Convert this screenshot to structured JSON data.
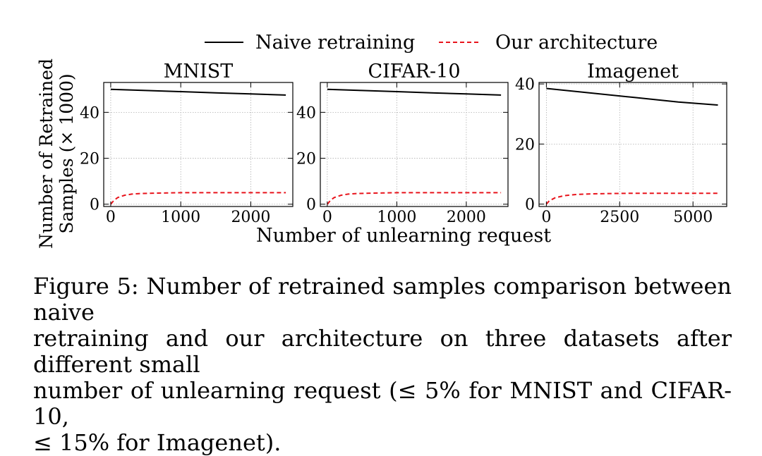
{
  "legend": {
    "placement": "top-center",
    "entries": [
      {
        "label": "Naive retraining",
        "color": "#000000",
        "dash": "solid"
      },
      {
        "label": "Our architecture",
        "color": "#e8141c",
        "dash": "dashed"
      }
    ]
  },
  "shared_ylabel": [
    "Number of Retrained",
    "Samples (× 1000)"
  ],
  "shared_xlabel": "Number of unlearning request",
  "chart_data": [
    {
      "type": "line",
      "title": "MNIST",
      "xlim": [
        -100,
        2600
      ],
      "ylim": [
        -1,
        53
      ],
      "xticks": [
        0,
        1000,
        2000
      ],
      "yticks": [
        0,
        20,
        40
      ],
      "grid": true,
      "series": [
        {
          "name": "Naive retraining",
          "color": "#000000",
          "dash": "solid",
          "x": [
            0,
            500,
            1000,
            1500,
            2000,
            2500
          ],
          "y": [
            50,
            49.5,
            49,
            48.5,
            48,
            47.5
          ]
        },
        {
          "name": "Our architecture",
          "color": "#e8141c",
          "dash": "dashed",
          "x": [
            0,
            50,
            100,
            200,
            300,
            400,
            600,
            800,
            1000,
            1500,
            2000,
            2500
          ],
          "y": [
            0,
            1.8,
            2.9,
            3.9,
            4.4,
            4.6,
            4.8,
            4.9,
            5,
            5,
            5,
            5
          ]
        }
      ]
    },
    {
      "type": "line",
      "title": "CIFAR-10",
      "xlim": [
        -100,
        2600
      ],
      "ylim": [
        -1,
        53
      ],
      "xticks": [
        0,
        1000,
        2000
      ],
      "yticks": [
        0,
        20,
        40
      ],
      "grid": true,
      "series": [
        {
          "name": "Naive retraining",
          "color": "#000000",
          "dash": "solid",
          "x": [
            0,
            500,
            1000,
            1500,
            2000,
            2500
          ],
          "y": [
            50,
            49.5,
            49,
            48.5,
            48,
            47.5
          ]
        },
        {
          "name": "Our architecture",
          "color": "#e8141c",
          "dash": "dashed",
          "x": [
            0,
            50,
            100,
            200,
            300,
            400,
            600,
            800,
            1000,
            1500,
            2000,
            2500
          ],
          "y": [
            0,
            1.8,
            2.9,
            3.9,
            4.4,
            4.6,
            4.8,
            4.9,
            5,
            5,
            5,
            5
          ]
        }
      ]
    },
    {
      "type": "line",
      "title": "Imagenet",
      "xlim": [
        -250,
        6150
      ],
      "ylim": [
        -0.8,
        40.5
      ],
      "xticks": [
        0,
        2500,
        5000
      ],
      "yticks": [
        0,
        20,
        40
      ],
      "grid": true,
      "series": [
        {
          "name": "Naive retraining",
          "color": "#000000",
          "dash": "solid",
          "x": [
            0,
            1500,
            3000,
            4500,
            5850
          ],
          "y": [
            38.5,
            37,
            35.5,
            34,
            33
          ]
        },
        {
          "name": "Our architecture",
          "color": "#e8141c",
          "dash": "dashed",
          "x": [
            0,
            100,
            300,
            600,
            1000,
            1500,
            2000,
            3000,
            4000,
            5000,
            5850
          ],
          "y": [
            0,
            1.1,
            2.1,
            2.8,
            3.2,
            3.4,
            3.5,
            3.6,
            3.6,
            3.6,
            3.6
          ]
        }
      ]
    }
  ],
  "caption": {
    "lines": [
      "Figure 5: Number of retrained samples comparison between naive",
      "retraining and our architecture on three datasets after different small",
      "number of unlearning request (≤ 5% for MNIST and CIFAR-10,",
      "≤ 15% for Imagenet)."
    ]
  }
}
